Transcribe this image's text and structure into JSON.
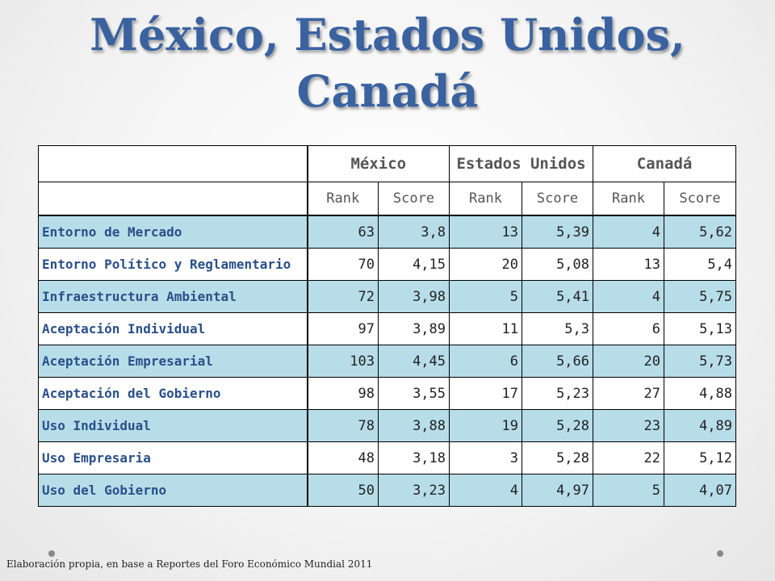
{
  "title": {
    "line1": "México, Estados Unidos,",
    "line2": "Canadá"
  },
  "table": {
    "countries": [
      "México",
      "Estados Unidos",
      "Canadá"
    ],
    "subheaders": [
      "Rank",
      "Score",
      "Rank",
      "Score",
      "Rank",
      "Score"
    ],
    "rows": [
      {
        "label": "Entorno de Mercado",
        "values": [
          "63",
          "3,8",
          "13",
          "5,39",
          "4",
          "5,62"
        ]
      },
      {
        "label": "Entorno Político y Reglamentario",
        "values": [
          "70",
          "4,15",
          "20",
          "5,08",
          "13",
          "5,4"
        ]
      },
      {
        "label": "Infraestructura Ambiental",
        "values": [
          "72",
          "3,98",
          "5",
          "5,41",
          "4",
          "5,75"
        ]
      },
      {
        "label": "Aceptación Individual",
        "values": [
          "97",
          "3,89",
          "11",
          "5,3",
          "6",
          "5,13"
        ]
      },
      {
        "label": "Aceptación Empresarial",
        "values": [
          "103",
          "4,45",
          "6",
          "5,66",
          "20",
          "5,73"
        ]
      },
      {
        "label": "Aceptación del Gobierno",
        "values": [
          "98",
          "3,55",
          "17",
          "5,23",
          "27",
          "4,88"
        ]
      },
      {
        "label": "Uso Individual",
        "values": [
          "78",
          "3,88",
          "19",
          "5,28",
          "23",
          "4,89"
        ]
      },
      {
        "label": "Uso Empresaria",
        "values": [
          "48",
          "3,18",
          "3",
          "5,28",
          "22",
          "5,12"
        ]
      },
      {
        "label": "Uso del Gobierno",
        "values": [
          "50",
          "3,23",
          "4",
          "4,97",
          "5",
          "4,07"
        ]
      }
    ]
  },
  "footnote": "Elaboración propia, en base a Reportes del Foro Económico Mundial 2011",
  "colors": {
    "title": "#3a62a0",
    "row_shade": "#b7dde8",
    "label": "#2a4f8a"
  }
}
